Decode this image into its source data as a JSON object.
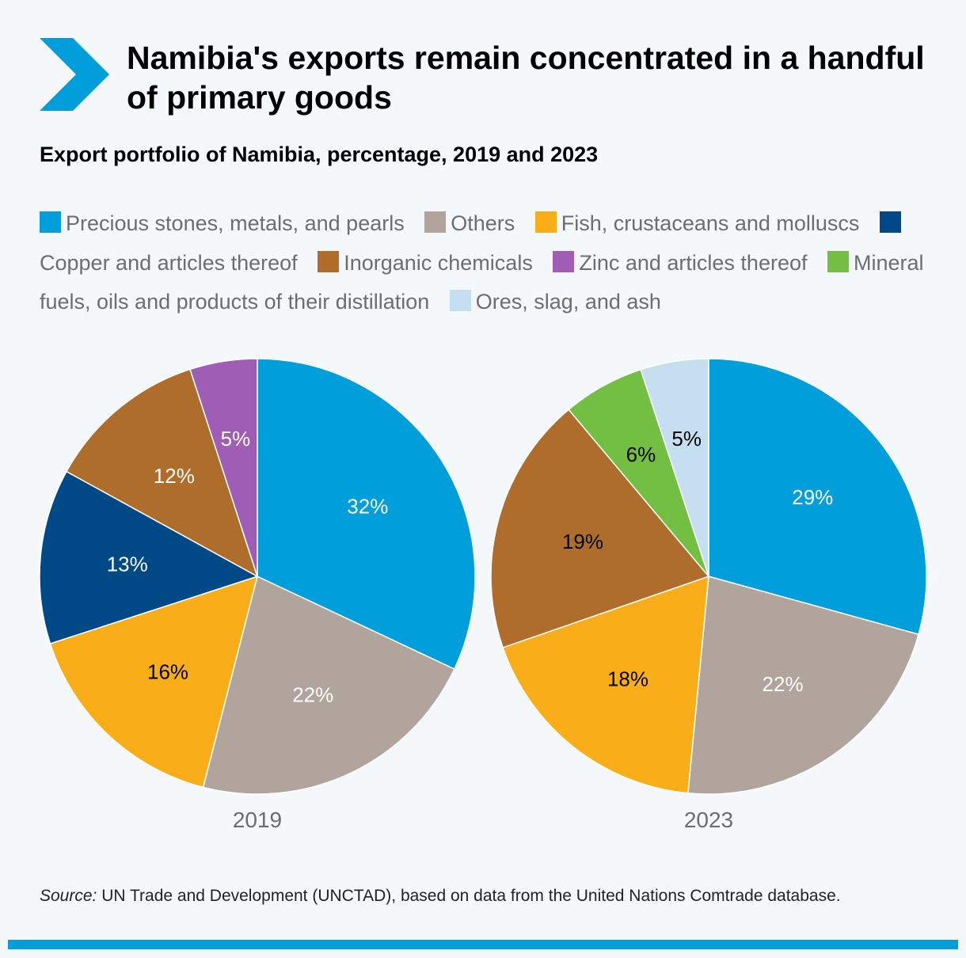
{
  "header": {
    "title": "Namibia's exports remain concentrated in a handful of primary goods",
    "subtitle": "Export portfolio of Namibia, percentage, 2019 and 2023"
  },
  "colors": {
    "accent": "#009edb",
    "background": "#f4f8fb"
  },
  "icons": {
    "title_marker": "chevron-right-icon"
  },
  "legend": [
    {
      "label": "Precious stones, metals, and pearls",
      "color": "#009edb"
    },
    {
      "label": "Others",
      "color": "#b0a49c"
    },
    {
      "label": "Fish, crustaceans and molluscs",
      "color": "#f9ae19"
    },
    {
      "label": "Copper and articles thereof",
      "color": "#004987"
    },
    {
      "label": "Inorganic chemicals",
      "color": "#af6d2b"
    },
    {
      "label": "Zinc and articles thereof",
      "color": "#a05db5"
    },
    {
      "label": "Mineral fuels, oils and products of their distillation",
      "color": "#72bf44"
    },
    {
      "label": "Ores, slag, and ash",
      "color": "#c6dff0"
    }
  ],
  "chart_data": [
    {
      "type": "pie",
      "label": "2019",
      "slices": [
        {
          "name": "Precious stones, metals, and pearls",
          "value": 32,
          "label": "32%",
          "color": "#009edb",
          "text_color": "#ffffff"
        },
        {
          "name": "Others",
          "value": 22,
          "label": "22%",
          "color": "#b0a49c",
          "text_color": "#ffffff"
        },
        {
          "name": "Fish, crustaceans and molluscs",
          "value": 16,
          "label": "16%",
          "color": "#f9ae19",
          "text_color": "#000000"
        },
        {
          "name": "Copper and articles thereof",
          "value": 13,
          "label": "13%",
          "color": "#004987",
          "text_color": "#ffffff"
        },
        {
          "name": "Inorganic chemicals",
          "value": 12,
          "label": "12%",
          "color": "#af6d2b",
          "text_color": "#ffffff"
        },
        {
          "name": "Zinc and articles thereof",
          "value": 5,
          "label": "5%",
          "color": "#a05db5",
          "text_color": "#ffffff"
        }
      ]
    },
    {
      "type": "pie",
      "label": "2023",
      "slices": [
        {
          "name": "Precious stones, metals, and pearls",
          "value": 29,
          "label": "29%",
          "color": "#009edb",
          "text_color": "#ffffff"
        },
        {
          "name": "Others",
          "value": 22,
          "label": "22%",
          "color": "#b0a49c",
          "text_color": "#ffffff"
        },
        {
          "name": "Fish, crustaceans and molluscs",
          "value": 18,
          "label": "18%",
          "color": "#f9ae19",
          "text_color": "#000000"
        },
        {
          "name": "Inorganic chemicals",
          "value": 19,
          "label": "19%",
          "color": "#af6d2b",
          "text_color": "#000000"
        },
        {
          "name": "Mineral fuels, oils and products of their distillation",
          "value": 6,
          "label": "6%",
          "color": "#72bf44",
          "text_color": "#000000"
        },
        {
          "name": "Ores, slag, and ash",
          "value": 5,
          "label": "5%",
          "color": "#c6dff0",
          "text_color": "#000000"
        }
      ]
    }
  ],
  "footer": {
    "source_label": "Source:",
    "source_text": " UN Trade and Development (UNCTAD), based on data from the United Nations Comtrade database."
  }
}
